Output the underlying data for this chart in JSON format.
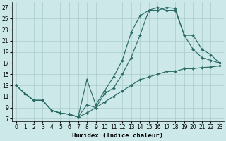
{
  "xlabel": "Humidex (Indice chaleur)",
  "bg_color": "#cce8e8",
  "grid_color": "#aacccc",
  "line_color": "#2a6b65",
  "xlim": [
    -0.5,
    23.5
  ],
  "ylim": [
    6.5,
    28.0
  ],
  "xticks": [
    0,
    1,
    2,
    3,
    4,
    5,
    6,
    7,
    8,
    9,
    10,
    11,
    12,
    13,
    14,
    15,
    16,
    17,
    18,
    19,
    20,
    21,
    22,
    23
  ],
  "yticks": [
    7,
    9,
    11,
    13,
    15,
    17,
    19,
    21,
    23,
    25,
    27
  ],
  "line_A_x": [
    0,
    1,
    2,
    3,
    4,
    5,
    6,
    7,
    8,
    9,
    10,
    11,
    12,
    13,
    14,
    15,
    16,
    17,
    18,
    19,
    20,
    21,
    22,
    23
  ],
  "line_A_y": [
    13.0,
    11.5,
    10.3,
    10.3,
    8.5,
    8.0,
    7.8,
    7.3,
    8.0,
    9.0,
    10.0,
    11.0,
    12.0,
    13.0,
    14.0,
    14.5,
    15.0,
    15.5,
    15.5,
    16.0,
    16.0,
    16.2,
    16.3,
    16.5
  ],
  "line_B_x": [
    0,
    1,
    2,
    3,
    4,
    5,
    6,
    7,
    8,
    9,
    10,
    11,
    12,
    13,
    14,
    15,
    16,
    17,
    18,
    19,
    20,
    21,
    22,
    23
  ],
  "line_B_y": [
    13.0,
    11.5,
    10.3,
    10.3,
    8.5,
    8.0,
    7.8,
    7.3,
    9.5,
    9.0,
    11.5,
    12.5,
    15.0,
    18.0,
    22.0,
    26.5,
    27.0,
    26.5,
    26.5,
    22.0,
    19.5,
    18.0,
    17.5,
    17.0
  ],
  "line_C_x": [
    0,
    1,
    2,
    3,
    4,
    5,
    6,
    7,
    8,
    9,
    10,
    11,
    12,
    13,
    14,
    15,
    16,
    17,
    18,
    19,
    20,
    21,
    22,
    23
  ],
  "line_C_y": [
    13.0,
    11.5,
    10.3,
    10.3,
    8.5,
    8.0,
    7.8,
    7.3,
    14.0,
    9.5,
    12.0,
    14.5,
    17.5,
    22.5,
    25.5,
    26.5,
    26.5,
    27.0,
    26.8,
    22.0,
    22.0,
    19.5,
    18.5,
    17.0
  ],
  "marker": "D",
  "marker_size": 2.0,
  "line_width": 0.85,
  "xlabel_fontsize": 6.5,
  "tick_fontsize": 5.5
}
